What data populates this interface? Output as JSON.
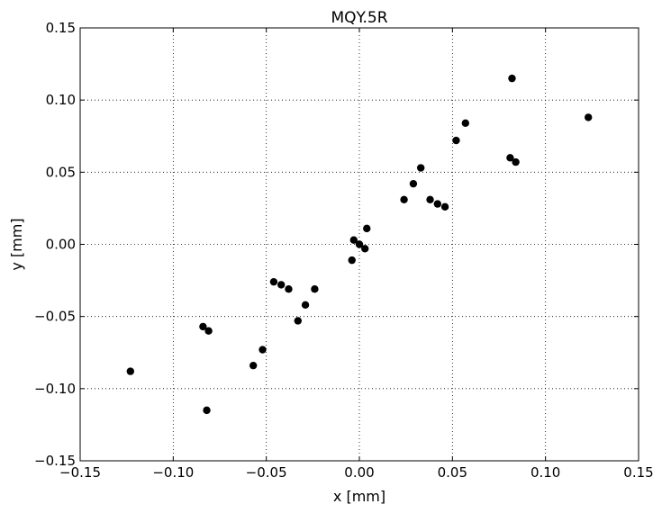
{
  "chart_data": {
    "type": "scatter",
    "title": "MQY.5R",
    "xlabel": "x [mm]",
    "ylabel": "y [mm]",
    "xlim": [
      -0.15,
      0.15
    ],
    "ylim": [
      -0.15,
      0.15
    ],
    "xticks": [
      -0.15,
      -0.1,
      -0.05,
      0.0,
      0.05,
      0.1,
      0.15
    ],
    "yticks": [
      -0.15,
      -0.1,
      -0.05,
      0.0,
      0.05,
      0.1,
      0.15
    ],
    "xtick_labels": [
      "−0.15",
      "−0.10",
      "−0.05",
      "0.00",
      "0.05",
      "0.10",
      "0.15"
    ],
    "ytick_labels": [
      "−0.15",
      "−0.10",
      "−0.05",
      "0.00",
      "0.05",
      "0.10",
      "0.15"
    ],
    "grid": true,
    "marker_color": "#000000",
    "series": [
      {
        "x": [
          0.082,
          0.057,
          0.123,
          0.052,
          0.081,
          0.084,
          0.033,
          0.029,
          0.024,
          0.038,
          0.042,
          0.046,
          0.004,
          -0.003,
          0.0,
          0.003,
          -0.004,
          -0.046,
          -0.042,
          -0.038,
          -0.024,
          -0.029,
          -0.033,
          -0.084,
          -0.081,
          -0.052,
          -0.057,
          -0.123,
          -0.082
        ],
        "y": [
          0.115,
          0.084,
          0.088,
          0.072,
          0.06,
          0.057,
          0.053,
          0.042,
          0.031,
          0.031,
          0.028,
          0.026,
          0.011,
          0.003,
          0.0,
          -0.003,
          -0.011,
          -0.026,
          -0.028,
          -0.031,
          -0.031,
          -0.042,
          -0.053,
          -0.057,
          -0.06,
          -0.073,
          -0.084,
          -0.088,
          -0.115
        ]
      }
    ]
  }
}
